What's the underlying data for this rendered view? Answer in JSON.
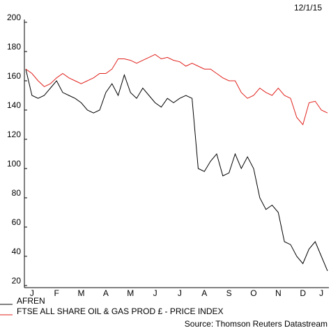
{
  "chart_data": {
    "type": "line",
    "date": "12/1/15",
    "source": "Source: Thomson Reuters Datastream",
    "categories": [
      null,
      "J",
      null,
      null,
      null,
      "F",
      null,
      null,
      null,
      "M",
      null,
      null,
      null,
      "A",
      null,
      null,
      null,
      "M",
      null,
      null,
      null,
      "J",
      null,
      null,
      null,
      "J",
      null,
      null,
      null,
      "A",
      null,
      null,
      null,
      "S",
      null,
      null,
      null,
      "O",
      null,
      null,
      null,
      "N",
      null,
      null,
      null,
      "D",
      null,
      null,
      "J",
      null
    ],
    "series": [
      {
        "name": "AFREN",
        "color": "#000000",
        "values": [
          168,
          150,
          148,
          150,
          155,
          160,
          152,
          150,
          148,
          145,
          140,
          138,
          140,
          152,
          158,
          150,
          164,
          152,
          148,
          155,
          150,
          145,
          142,
          148,
          145,
          148,
          150,
          148,
          100,
          98,
          105,
          110,
          95,
          97,
          110,
          100,
          108,
          100,
          80,
          72,
          75,
          70,
          50,
          48,
          40,
          35,
          45,
          50,
          40,
          30
        ]
      },
      {
        "name": "FTSE ALL SHARE OIL & GAS PROD £ - PRICE INDEX",
        "color": "#e0201b",
        "values": [
          168,
          165,
          160,
          156,
          158,
          162,
          165,
          162,
          160,
          158,
          160,
          162,
          165,
          165,
          168,
          175,
          175,
          174,
          172,
          174,
          176,
          178,
          175,
          176,
          174,
          173,
          170,
          172,
          170,
          168,
          168,
          165,
          162,
          160,
          160,
          152,
          148,
          150,
          155,
          152,
          150,
          155,
          150,
          148,
          135,
          130,
          145,
          146,
          140,
          138
        ]
      }
    ],
    "ylim": [
      20,
      200
    ],
    "yticks": [
      20,
      40,
      60,
      80,
      100,
      120,
      140,
      160,
      180,
      200
    ]
  }
}
